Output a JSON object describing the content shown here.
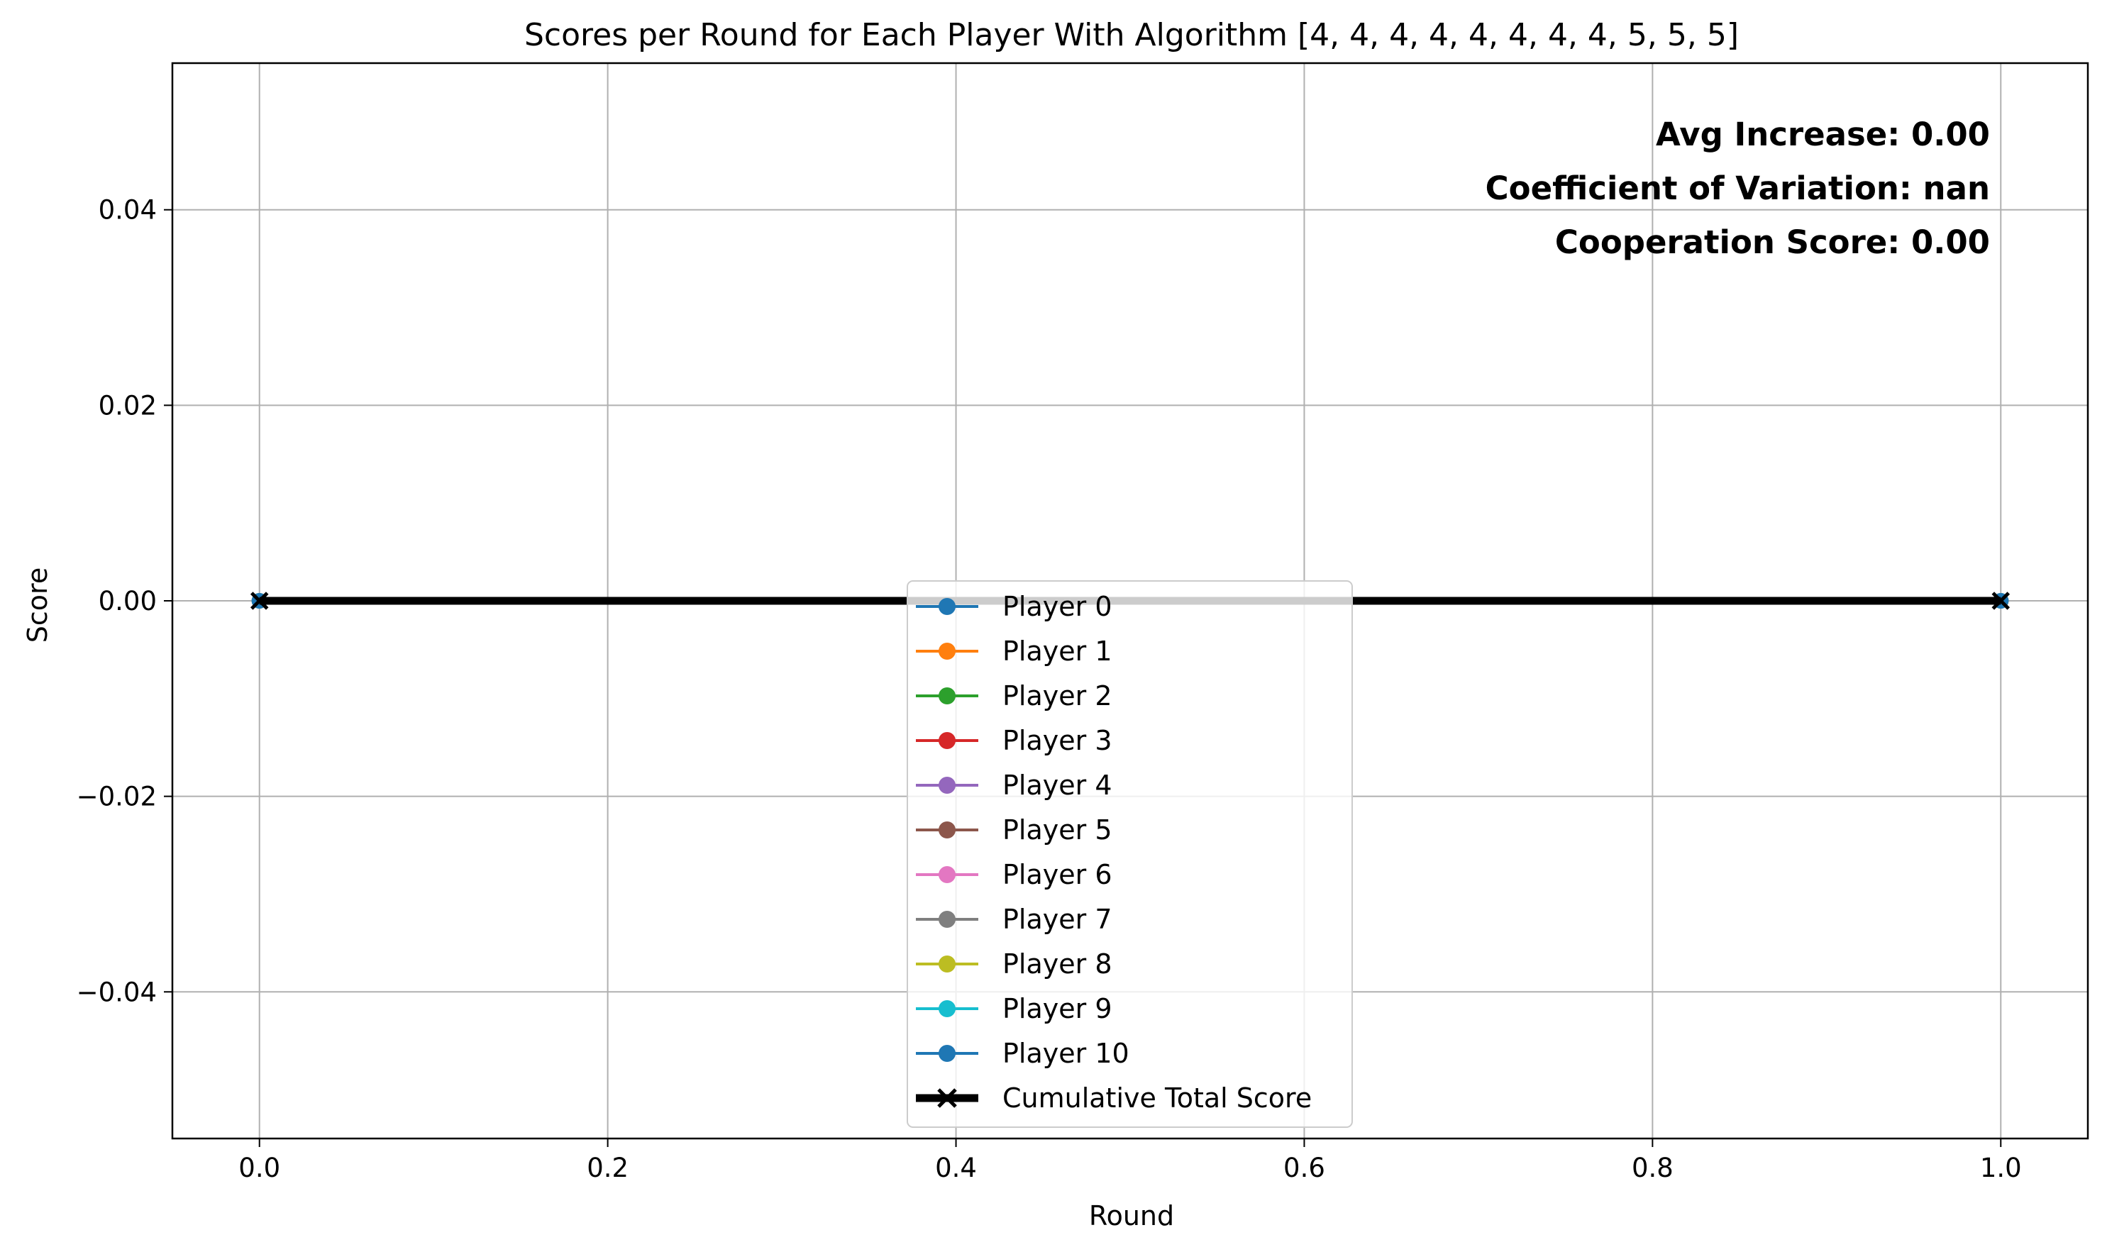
{
  "chart_data": {
    "type": "line",
    "title": "Scores per Round for Each Player With Algorithm [4, 4, 4, 4, 4, 4, 4, 4, 5, 5, 5]",
    "xlabel": "Round",
    "ylabel": "Score",
    "xlim": [
      -0.05,
      1.05
    ],
    "ylim": [
      -0.055,
      0.055
    ],
    "x_ticks": [
      0.0,
      0.2,
      0.4,
      0.6,
      0.8,
      1.0
    ],
    "x_tick_labels": [
      "0.0",
      "0.2",
      "0.4",
      "0.6",
      "0.8",
      "1.0"
    ],
    "y_ticks": [
      -0.04,
      -0.02,
      0.0,
      0.02,
      0.04
    ],
    "y_tick_labels": [
      "−0.04",
      "−0.02",
      "0.00",
      "0.02",
      "0.04"
    ],
    "grid": true,
    "legend_position": "lower-center",
    "x": [
      0,
      1
    ],
    "series": [
      {
        "name": "Player 0",
        "values": [
          0,
          0
        ],
        "color": "#1f77b4",
        "marker": "circle"
      },
      {
        "name": "Player 1",
        "values": [
          0,
          0
        ],
        "color": "#ff7f0e",
        "marker": "circle"
      },
      {
        "name": "Player 2",
        "values": [
          0,
          0
        ],
        "color": "#2ca02c",
        "marker": "circle"
      },
      {
        "name": "Player 3",
        "values": [
          0,
          0
        ],
        "color": "#d62728",
        "marker": "circle"
      },
      {
        "name": "Player 4",
        "values": [
          0,
          0
        ],
        "color": "#9467bd",
        "marker": "circle"
      },
      {
        "name": "Player 5",
        "values": [
          0,
          0
        ],
        "color": "#8c564b",
        "marker": "circle"
      },
      {
        "name": "Player 6",
        "values": [
          0,
          0
        ],
        "color": "#e377c2",
        "marker": "circle"
      },
      {
        "name": "Player 7",
        "values": [
          0,
          0
        ],
        "color": "#7f7f7f",
        "marker": "circle"
      },
      {
        "name": "Player 8",
        "values": [
          0,
          0
        ],
        "color": "#bcbd22",
        "marker": "circle"
      },
      {
        "name": "Player 9",
        "values": [
          0,
          0
        ],
        "color": "#17becf",
        "marker": "circle"
      },
      {
        "name": "Player 10",
        "values": [
          0,
          0
        ],
        "color": "#1f77b4",
        "marker": "circle"
      },
      {
        "name": "Cumulative Total Score",
        "values": [
          0,
          0
        ],
        "color": "#000000",
        "marker": "x",
        "thick": true
      }
    ],
    "annotations": [
      "Avg Increase: 0.00",
      "Coefficient of Variation: nan",
      "Cooperation Score: 0.00"
    ]
  }
}
